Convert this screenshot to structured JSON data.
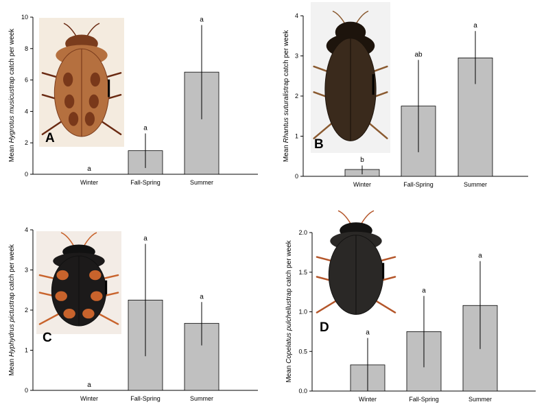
{
  "chart_data": [
    {
      "type": "bar",
      "panel": "A",
      "ylabel_prefix": "Mean ",
      "ylabel_species": "Hygrotus musicus",
      "ylabel_suffix": "trap catch per week",
      "ylim": [
        0,
        10
      ],
      "yticks": [
        "0",
        "2",
        "4",
        "6",
        "8",
        "10"
      ],
      "categories": [
        "Winter",
        "Fall-Spring",
        "Summer"
      ],
      "values": [
        0,
        1.5,
        6.5
      ],
      "err_low": [
        0,
        0.4,
        3.5
      ],
      "err_high": [
        0,
        2.6,
        9.5
      ],
      "significance": [
        "a",
        "a",
        "a"
      ],
      "image": {
        "bg": "#f4ebdf",
        "body": "#b5703f",
        "dark": "#7a3c1d",
        "spots": "#6a2a12"
      }
    },
    {
      "type": "bar",
      "panel": "B",
      "ylabel_prefix": "Mean ",
      "ylabel_species": "Rhantus suturalis",
      "ylabel_suffix": "trap catch per week",
      "ylim": [
        0,
        4
      ],
      "yticks": [
        "0",
        "1",
        "2",
        "3",
        "4"
      ],
      "categories": [
        "Winter",
        "Fall-Spring",
        "Summer"
      ],
      "values": [
        0.17,
        1.75,
        2.95
      ],
      "err_low": [
        0.05,
        0.6,
        2.3
      ],
      "err_high": [
        0.27,
        2.9,
        3.62
      ],
      "significance": [
        "b",
        "ab",
        "a"
      ],
      "image": {
        "bg": "#f2f2f2",
        "body": "#3a2a1c",
        "dark": "#1d140c",
        "spots": "#8a5a30"
      }
    },
    {
      "type": "bar",
      "panel": "C",
      "ylabel_prefix": "Mean ",
      "ylabel_species": "Hyphydrus pictus",
      "ylabel_suffix": "trap catch per week",
      "ylim": [
        0,
        4
      ],
      "yticks": [
        "0",
        "1",
        "2",
        "3",
        "4"
      ],
      "categories": [
        "Winter",
        "Fall-Spring",
        "Summer"
      ],
      "values": [
        0,
        2.25,
        1.67
      ],
      "err_low": [
        0,
        0.85,
        1.12
      ],
      "err_high": [
        0,
        3.65,
        2.2
      ],
      "significance": [
        "a",
        "a",
        "a"
      ],
      "image": {
        "bg": "#f3ece6",
        "body": "#1c1a1a",
        "dark": "#111",
        "spots": "#c8632c"
      }
    },
    {
      "type": "bar",
      "panel": "D",
      "ylabel_prefix": "Mean ",
      "ylabel_species": "Copelatus pulchellus",
      "ylabel_suffix": "trap catch per week",
      "ylim": [
        0,
        2
      ],
      "yticks": [
        "0.0",
        "0.5",
        "1.0",
        "1.5",
        "2.0"
      ],
      "categories": [
        "Winter",
        "Fall-Spring",
        "Summer"
      ],
      "values": [
        0.33,
        0.75,
        1.08
      ],
      "err_low": [
        0,
        0.3,
        0.53
      ],
      "err_high": [
        0.67,
        1.2,
        1.64
      ],
      "significance": [
        "a",
        "a",
        "a"
      ],
      "image": {
        "bg": "#ffffff",
        "body": "#2a2826",
        "dark": "#141312",
        "spots": "#b4562a"
      }
    }
  ]
}
